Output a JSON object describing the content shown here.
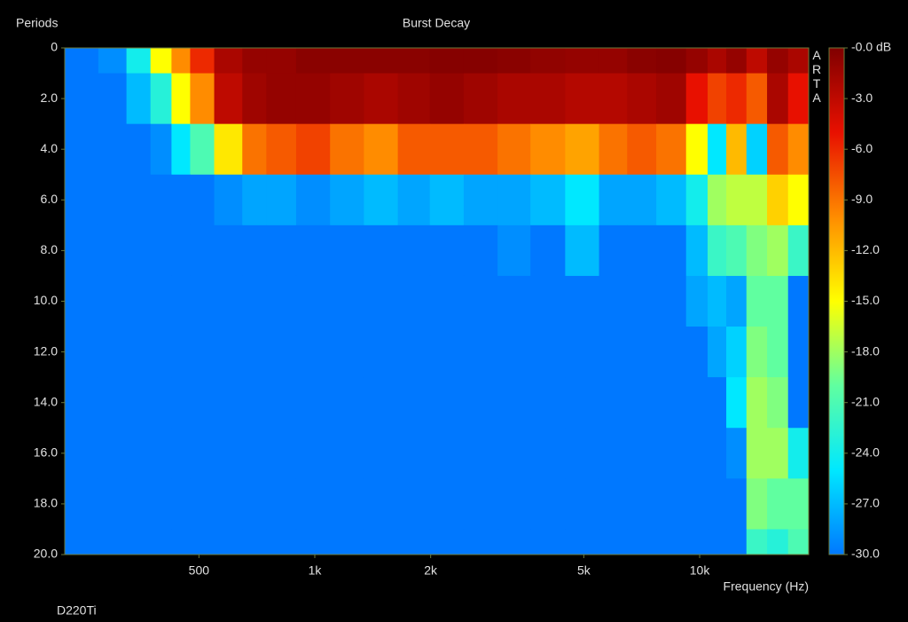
{
  "chart_data": {
    "type": "heatmap",
    "title": "Burst Decay",
    "y_label": "Periods",
    "x_label": "Frequency (Hz)",
    "footer": "D220Ti",
    "watermark": "ARTA",
    "xscale": "log",
    "xlim": [
      224,
      19200
    ],
    "xticks": [
      500,
      {
        "value": 1000,
        "label": "1k"
      },
      {
        "value": 2000,
        "label": "2k"
      },
      {
        "value": 5000,
        "label": "5k"
      },
      {
        "value": 10000,
        "label": "10k"
      }
    ],
    "ylim": [
      0,
      20
    ],
    "y_reversed": true,
    "yticks": [
      0,
      {
        "value": 2,
        "label": "2.0"
      },
      {
        "value": 4,
        "label": "4.0"
      },
      {
        "value": 6,
        "label": "6.0"
      },
      {
        "value": 8,
        "label": "8.0"
      },
      {
        "value": 10,
        "label": "10.0"
      },
      {
        "value": 12,
        "label": "12.0"
      },
      {
        "value": 14,
        "label": "14.0"
      },
      {
        "value": 16,
        "label": "16.0"
      },
      {
        "value": 18,
        "label": "18.0"
      },
      {
        "value": 20,
        "label": "20.0"
      }
    ],
    "zlim": [
      -30,
      0
    ],
    "zticks": [
      {
        "value": 0,
        "label": "-0.0 dB"
      },
      {
        "value": -3,
        "label": "-3.0"
      },
      {
        "value": -6,
        "label": "-6.0"
      },
      {
        "value": -9,
        "label": "-9.0"
      },
      {
        "value": -12,
        "label": "-12.0"
      },
      {
        "value": -15,
        "label": "-15.0"
      },
      {
        "value": -18,
        "label": "-18.0"
      },
      {
        "value": -21,
        "label": "-21.0"
      },
      {
        "value": -24,
        "label": "-24.0"
      },
      {
        "value": -27,
        "label": "-27.0"
      },
      {
        "value": -30,
        "label": "-30.0"
      }
    ],
    "colorscale": [
      "#0078ff",
      "#00e8ff",
      "#60ffa0",
      "#ffff00",
      "#ff8c00",
      "#e81000",
      "#800000"
    ],
    "frame_color": "#6b7a3a",
    "x": [
      250,
      300,
      350,
      400,
      450,
      500,
      600,
      700,
      800,
      1000,
      1200,
      1500,
      1800,
      2200,
      2700,
      3300,
      4000,
      5000,
      6000,
      7000,
      8500,
      10000,
      11000,
      12500,
      14000,
      16000,
      18000
    ],
    "y": [
      0,
      2,
      4,
      6,
      8,
      10,
      12,
      14,
      16,
      18,
      20
    ],
    "z": [
      [
        -30,
        -29,
        -24,
        -15,
        -10,
        -6,
        -2,
        -1,
        -1,
        -0.5,
        -0.5,
        -0.5,
        -0.5,
        -0.3,
        -0.3,
        -0.5,
        -0.8,
        -1,
        -1,
        -0.5,
        -0.3,
        -1,
        -2,
        -1,
        -3,
        -1,
        -2
      ],
      [
        -30,
        -30,
        -27,
        -23,
        -15,
        -10,
        -3,
        -1.5,
        -1,
        -1,
        -1.5,
        -2,
        -1.5,
        -1,
        -1.5,
        -2,
        -2,
        -2.5,
        -2.5,
        -2,
        -1.5,
        -5,
        -7,
        -6,
        -8,
        -2,
        -5
      ],
      [
        -30,
        -30,
        -30,
        -29,
        -25,
        -21,
        -14,
        -9,
        -8,
        -7,
        -9,
        -10,
        -8,
        -8,
        -8,
        -9,
        -10,
        -11,
        -9,
        -8,
        -9,
        -15,
        -25,
        -12,
        -26,
        -8,
        -10
      ],
      [
        -30,
        -30,
        -30,
        -30,
        -30,
        -30,
        -29,
        -28,
        -28,
        -29,
        -28,
        -27,
        -28,
        -27,
        -28,
        -28,
        -27,
        -25,
        -28,
        -28,
        -27,
        -24,
        -18,
        -17,
        -17,
        -13,
        -15
      ],
      [
        -30,
        -30,
        -30,
        -30,
        -30,
        -30,
        -30,
        -30,
        -30,
        -30,
        -30,
        -30,
        -30,
        -30,
        -30,
        -29,
        -30,
        -27,
        -30,
        -30,
        -30,
        -27,
        -22,
        -21,
        -19,
        -18,
        -22
      ],
      [
        -30,
        -30,
        -30,
        -30,
        -30,
        -30,
        -30,
        -30,
        -30,
        -30,
        -30,
        -30,
        -30,
        -30,
        -30,
        -30,
        -30,
        -30,
        -30,
        -30,
        -30,
        -28,
        -27,
        -28,
        -20,
        -20,
        -30
      ],
      [
        -30,
        -30,
        -30,
        -30,
        -30,
        -30,
        -30,
        -30,
        -30,
        -30,
        -30,
        -30,
        -30,
        -30,
        -30,
        -30,
        -30,
        -30,
        -30,
        -30,
        -30,
        -30,
        -28,
        -26,
        -19,
        -20,
        -30
      ],
      [
        -30,
        -30,
        -30,
        -30,
        -30,
        -30,
        -30,
        -30,
        -30,
        -30,
        -30,
        -30,
        -30,
        -30,
        -30,
        -30,
        -30,
        -30,
        -30,
        -30,
        -30,
        -30,
        -30,
        -25,
        -18,
        -19,
        -30
      ],
      [
        -30,
        -30,
        -30,
        -30,
        -30,
        -30,
        -30,
        -30,
        -30,
        -30,
        -30,
        -30,
        -30,
        -30,
        -30,
        -30,
        -30,
        -30,
        -30,
        -30,
        -30,
        -30,
        -30,
        -29,
        -18,
        -18,
        -24
      ],
      [
        -30,
        -30,
        -30,
        -30,
        -30,
        -30,
        -30,
        -30,
        -30,
        -30,
        -30,
        -30,
        -30,
        -30,
        -30,
        -30,
        -30,
        -30,
        -30,
        -30,
        -30,
        -30,
        -30,
        -30,
        -19,
        -20,
        -20
      ],
      [
        -30,
        -30,
        -30,
        -30,
        -30,
        -30,
        -30,
        -30,
        -30,
        -30,
        -30,
        -30,
        -30,
        -30,
        -30,
        -30,
        -30,
        -30,
        -30,
        -30,
        -30,
        -30,
        -30,
        -30,
        -22,
        -23,
        -21
      ]
    ]
  }
}
